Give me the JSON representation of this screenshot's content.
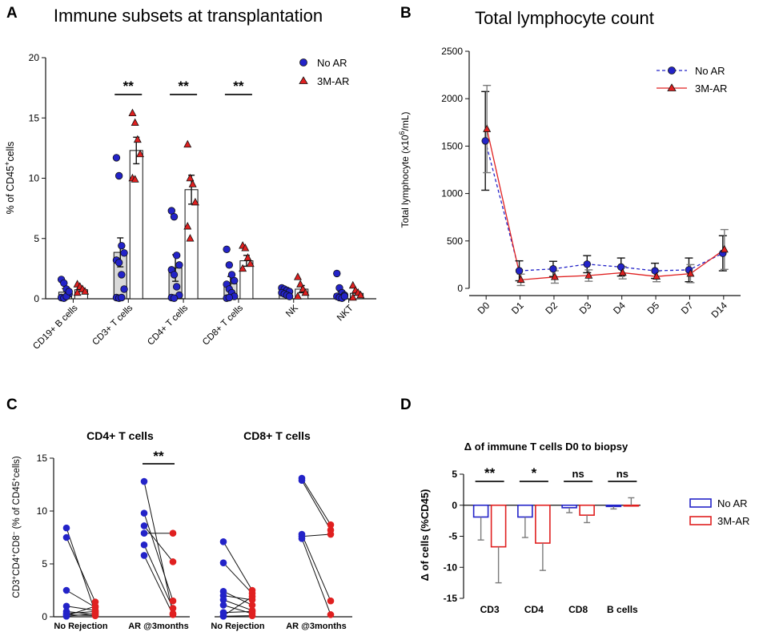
{
  "colors": {
    "blue": "#2323c8",
    "red": "#e02020",
    "black": "#111111",
    "grey": "#7a7a7a",
    "barfill": "#d9d9d9"
  },
  "chart_data": [
    {
      "id": "A",
      "type": "bar",
      "panel_letter": "A",
      "title": "Immune subsets at transplantation",
      "ylabel_pre": "% of CD45",
      "ylabel_sup": "+",
      "ylabel_post": "cells",
      "ylim": [
        0,
        20
      ],
      "yticks": [
        "0",
        "5",
        "10",
        "15",
        "20"
      ],
      "categories": [
        "CD19+ B cells",
        "CD3+ T cells",
        "CD4+ T cells",
        "CD8+ T cells",
        "NK",
        "NKT"
      ],
      "legend": [
        "No AR",
        "3M-AR"
      ],
      "series": [
        {
          "name": "No AR",
          "marker": "circle",
          "means": [
            0.55,
            3.85,
            2.55,
            1.25,
            0.6,
            0.4
          ],
          "sems": [
            0.3,
            1.2,
            1.1,
            0.6,
            0.15,
            0.2
          ],
          "points": [
            [
              1.6,
              1.3,
              0.8,
              0.4,
              0.1,
              0.05,
              0.2,
              0.6
            ],
            [
              11.7,
              10.2,
              4.4,
              3.8,
              3.2,
              3.0,
              2.0,
              0.8,
              0.1,
              0.05,
              0.1
            ],
            [
              7.3,
              6.8,
              3.6,
              2.8,
              2.4,
              2.0,
              1.0,
              0.3,
              0.1,
              0.05
            ],
            [
              4.1,
              2.8,
              2.0,
              1.5,
              1.2,
              0.8,
              0.5,
              0.2,
              0.05,
              0.1
            ],
            [
              0.9,
              0.8,
              0.7,
              0.6,
              0.5,
              0.4,
              0.3,
              0.2
            ],
            [
              2.1,
              0.9,
              0.5,
              0.3,
              0.2,
              0.1,
              0.05,
              0.2
            ]
          ]
        },
        {
          "name": "3M-AR",
          "marker": "triangle",
          "means": [
            0.75,
            12.3,
            9.05,
            3.15,
            0.8,
            0.45
          ],
          "sems": [
            0.15,
            1.1,
            1.2,
            0.45,
            0.3,
            0.15
          ],
          "points": [
            [
              1.2,
              1.0,
              0.8,
              0.6,
              0.5
            ],
            [
              15.4,
              14.6,
              13.2,
              12.0,
              10.0,
              9.9
            ],
            [
              12.8,
              10.0,
              9.5,
              8.0,
              6.0,
              5.0
            ],
            [
              4.4,
              4.2,
              3.4,
              2.9,
              2.5
            ],
            [
              1.8,
              1.2,
              0.8,
              0.5,
              0.2
            ],
            [
              1.1,
              0.7,
              0.5,
              0.3,
              0.1
            ]
          ]
        }
      ],
      "significance": [
        {
          "category": 1,
          "label": "**"
        },
        {
          "category": 2,
          "label": "**"
        },
        {
          "category": 3,
          "label": "**"
        }
      ]
    },
    {
      "id": "B",
      "type": "line",
      "panel_letter": "B",
      "title": "Total lymphocyte count",
      "ylabel_pre": "Total lymphocyte (x10",
      "ylabel_sup": "6",
      "ylabel_post": "/mL)",
      "ylim": [
        0,
        2500
      ],
      "yticks": [
        "0",
        "500",
        "1000",
        "1500",
        "2000",
        "2500"
      ],
      "categories": [
        "D0",
        "D1",
        "D2",
        "D3",
        "D4",
        "D5",
        "D7",
        "D14"
      ],
      "legend": [
        "No AR",
        "3M-AR"
      ],
      "series": [
        {
          "name": "No AR",
          "style": "dashed",
          "marker": "circle",
          "values": [
            1555,
            185,
            205,
            255,
            225,
            185,
            195,
            370
          ],
          "errors": [
            520,
            105,
            80,
            90,
            95,
            80,
            125,
            185
          ]
        },
        {
          "name": "3M-AR",
          "style": "solid",
          "marker": "triangle",
          "values": [
            1680,
            90,
            120,
            135,
            165,
            125,
            155,
            410
          ],
          "errors": [
            460,
            60,
            65,
            60,
            65,
            55,
            95,
            210
          ]
        }
      ]
    },
    {
      "id": "C1",
      "type": "scatter",
      "panel_letter": "C",
      "title": "CD4+  T cells",
      "ylabel": "CD3+CD4+CD8− (% of CD45+cells)",
      "ylim": [
        0,
        15
      ],
      "yticks": [
        "0",
        "5",
        "10",
        "15"
      ],
      "categories": [
        "No Rejection",
        "AR @3months"
      ],
      "pairs_left": [
        [
          8.4,
          0.4
        ],
        [
          7.5,
          1.4
        ],
        [
          2.5,
          0.9
        ],
        [
          1.0,
          0.6
        ],
        [
          0.5,
          0.2
        ],
        [
          0.3,
          0.5
        ],
        [
          0.1,
          1.0
        ],
        [
          0.2,
          0.1
        ],
        [
          0.05,
          0.3
        ]
      ],
      "pairs_right": [
        [
          12.8,
          0.3
        ],
        [
          9.8,
          1.5
        ],
        [
          8.6,
          5.2
        ],
        [
          7.9,
          7.9
        ],
        [
          6.8,
          0.8
        ],
        [
          5.8,
          0.2
        ]
      ],
      "significance": {
        "category": 1,
        "label": "**"
      }
    },
    {
      "id": "C2",
      "type": "scatter",
      "title": "CD8+ T cells",
      "ylim": [
        0,
        15
      ],
      "categories": [
        "No Rejection",
        "AR @3months"
      ],
      "pairs_left": [
        [
          7.1,
          2.5
        ],
        [
          5.1,
          2.2
        ],
        [
          2.4,
          1.1
        ],
        [
          2.0,
          1.6
        ],
        [
          1.6,
          0.6
        ],
        [
          1.1,
          0.3
        ],
        [
          0.1,
          1.9
        ],
        [
          0.05,
          0.1
        ],
        [
          0.4,
          0.5
        ]
      ],
      "pairs_right": [
        [
          13.1,
          8.7
        ],
        [
          12.9,
          8.2
        ],
        [
          7.8,
          1.5
        ],
        [
          7.6,
          7.8
        ],
        [
          7.4,
          0.2
        ]
      ]
    },
    {
      "id": "D",
      "type": "bar",
      "panel_letter": "D",
      "title": "Δ of immune T cells D0 to biopsy",
      "ylabel": "Δ of cells (%CD45)",
      "ylim": [
        -15,
        5
      ],
      "yticks": [
        "5",
        "0",
        "-5",
        "-10",
        "-15"
      ],
      "categories": [
        "CD3",
        "CD4",
        "CD8",
        "B cells"
      ],
      "legend": [
        "No AR",
        "3M-AR"
      ],
      "series": [
        {
          "name": "No AR",
          "values": [
            -1.9,
            -1.9,
            -0.4,
            -0.2
          ],
          "errors": [
            3.7,
            3.3,
            0.8,
            0.4
          ]
        },
        {
          "name": "3M-AR",
          "values": [
            -6.7,
            -6.1,
            -1.6,
            0.0
          ],
          "errors": [
            5.8,
            4.4,
            1.2,
            1.2
          ]
        }
      ],
      "significance": [
        {
          "category": 0,
          "label": "**"
        },
        {
          "category": 1,
          "label": "*"
        },
        {
          "category": 2,
          "label": "ns"
        },
        {
          "category": 3,
          "label": "ns"
        }
      ]
    }
  ]
}
